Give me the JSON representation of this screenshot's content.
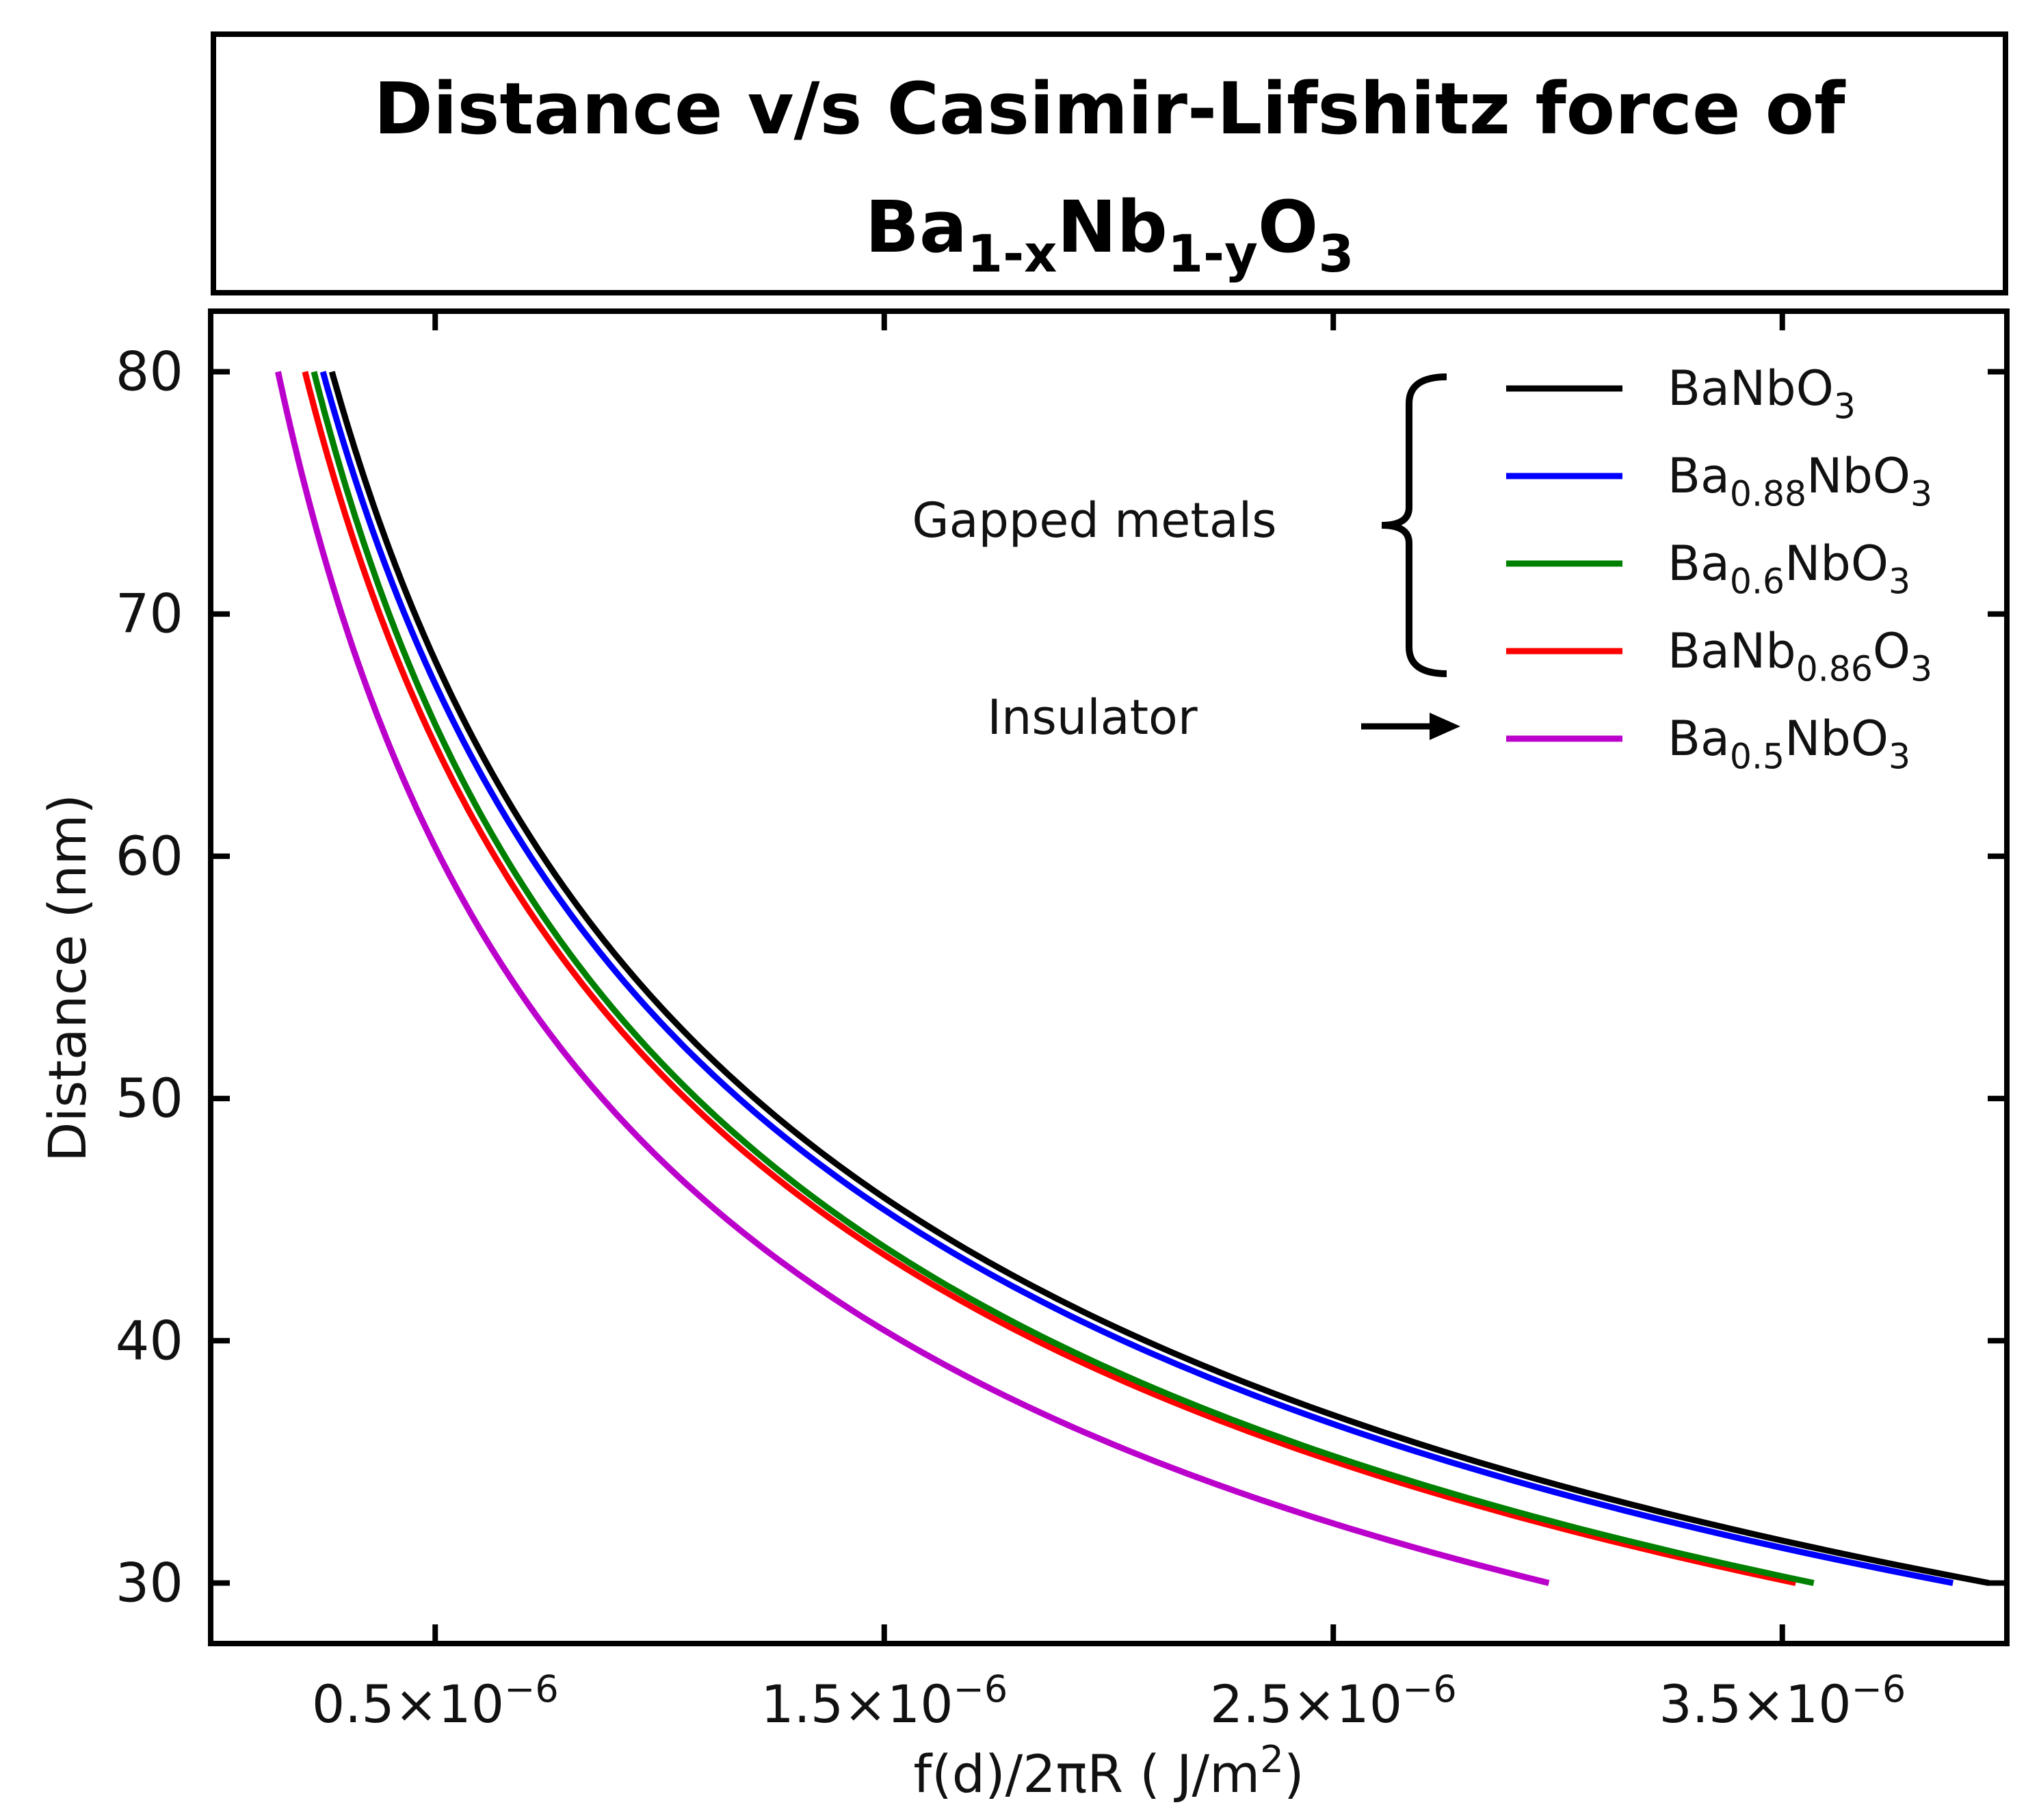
{
  "chart_data": {
    "type": "line",
    "title": {
      "line1": "Distance v/s Casimir-Lifshitz force of",
      "formula": [
        {
          "t": "Ba"
        },
        {
          "t": "1-x",
          "sub": true
        },
        {
          "t": "Nb"
        },
        {
          "t": "1-y",
          "sub": true
        },
        {
          "t": "O"
        },
        {
          "t": "3",
          "sub": true
        }
      ]
    },
    "xlabel": [
      {
        "t": "f(d)/2πR ( J/m"
      },
      {
        "t": "2",
        "sup": true
      },
      {
        "t": ")"
      }
    ],
    "ylabel": "Distance (nm)",
    "xlim": [
      0.0,
      4e-06
    ],
    "ylim": [
      27.5,
      82.5
    ],
    "x_ticks": [
      {
        "value": 5e-07,
        "mant": "0.5×10",
        "exp": "−6"
      },
      {
        "value": 1.5e-06,
        "mant": "1.5×10",
        "exp": "−6"
      },
      {
        "value": 2.5e-06,
        "mant": "2.5×10",
        "exp": "−6"
      },
      {
        "value": 3.5e-06,
        "mant": "3.5×10",
        "exp": "−6"
      }
    ],
    "y_ticks": [
      30,
      40,
      50,
      60,
      70,
      80
    ],
    "y_range_data": [
      30,
      80
    ],
    "series": [
      {
        "name": "BaNbO3",
        "color": "#000000",
        "label": [
          {
            "t": "BaNbO"
          },
          {
            "t": "3",
            "sub": true
          }
        ],
        "x_at_30": 3.96e-06,
        "x_at_80": 2.7e-07
      },
      {
        "name": "Ba0.88NbO3",
        "color": "#0000ff",
        "label": [
          {
            "t": "Ba"
          },
          {
            "t": "0.88",
            "sub": true
          },
          {
            "t": "NbO"
          },
          {
            "t": "3",
            "sub": true
          }
        ],
        "x_at_30": 3.88e-06,
        "x_at_80": 2.5e-07
      },
      {
        "name": "Ba0.6NbO3",
        "color": "#008000",
        "label": [
          {
            "t": "Ba"
          },
          {
            "t": "0.6",
            "sub": true
          },
          {
            "t": "NbO"
          },
          {
            "t": "3",
            "sub": true
          }
        ],
        "x_at_30": 3.57e-06,
        "x_at_80": 2.3e-07
      },
      {
        "name": "BaNb0.86O3",
        "color": "#ff0000",
        "label": [
          {
            "t": "BaNb"
          },
          {
            "t": "0.86",
            "sub": true
          },
          {
            "t": "O"
          },
          {
            "t": "3",
            "sub": true
          }
        ],
        "x_at_30": 3.53e-06,
        "x_at_80": 2.1e-07
      },
      {
        "name": "Ba0.5NbO3",
        "color": "#bb00cc",
        "label": [
          {
            "t": "Ba"
          },
          {
            "t": "0.5",
            "sub": true
          },
          {
            "t": "NbO"
          },
          {
            "t": "3",
            "sub": true
          }
        ],
        "x_at_30": 2.98e-06,
        "x_at_80": 1.5e-07
      }
    ],
    "annotations": {
      "gapped": "Gapped metals",
      "insulator": "Insulator"
    }
  }
}
